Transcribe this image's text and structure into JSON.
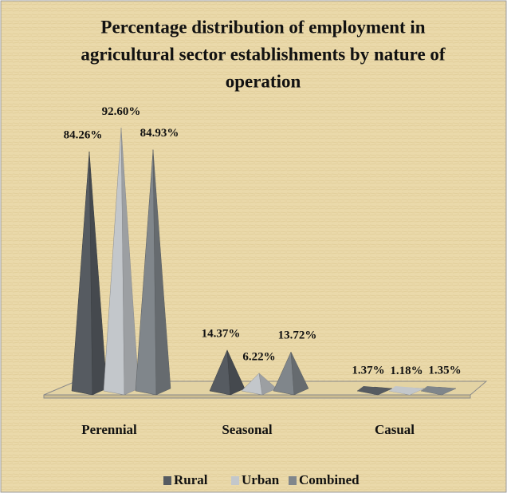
{
  "chart_data": {
    "type": "pyramid",
    "title": [
      "Percentage distribution of employment in",
      "agricultural sector establishments by nature of",
      "operation"
    ],
    "categories": [
      "Perennial",
      "Seasonal",
      "Casual"
    ],
    "series": [
      {
        "name": "Rural",
        "color": "#565b61",
        "values": [
          84.26,
          14.37,
          1.37
        ],
        "value_labels": [
          "84.26%",
          "14.37%",
          "1.37%"
        ]
      },
      {
        "name": "Urban",
        "color": "#c3c7cb",
        "values": [
          92.6,
          6.22,
          1.18
        ],
        "value_labels": [
          "92.60%",
          "6.22%",
          "1.18%"
        ]
      },
      {
        "name": "Combined",
        "color": "#80868b",
        "values": [
          84.93,
          13.72,
          1.35
        ],
        "value_labels": [
          "84.93%",
          "13.72%",
          "1.35%"
        ]
      }
    ],
    "legend": "bottom"
  }
}
